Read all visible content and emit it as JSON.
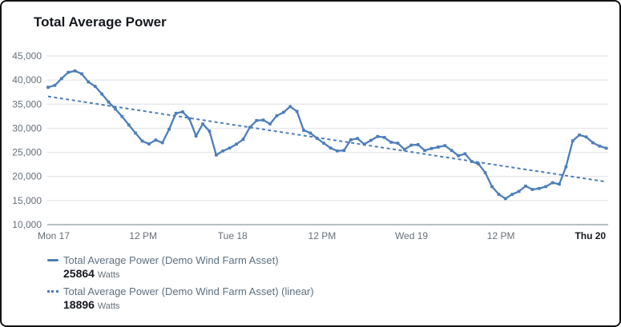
{
  "title": "Total Average Power",
  "chart_data": {
    "type": "line",
    "title": "Total Average Power",
    "xlabel": "",
    "ylabel": "",
    "ylim": [
      10000,
      45000
    ],
    "grid": true,
    "legend_position": "bottom-left",
    "ytick_values": [
      45000,
      40000,
      35000,
      30000,
      25000,
      20000,
      15000,
      10000
    ],
    "ytick_labels": [
      "45,000",
      "40,000",
      "35,000",
      "30,000",
      "25,000",
      "20,000",
      "15,000",
      "10,000"
    ],
    "xtick_labels": [
      "Mon 17",
      "12 PM",
      "Tue 18",
      "12 PM",
      "Wed 19",
      "12 PM",
      "Thu 20"
    ],
    "series": [
      {
        "name": "Total Average Power (Demo Wind Farm Asset)",
        "type": "line-with-markers",
        "color": "#4d7eb8",
        "current_value": 25864,
        "unit": "Watts",
        "values": [
          38500,
          38900,
          40300,
          41600,
          41900,
          41300,
          39600,
          38700,
          37100,
          35450,
          34000,
          32450,
          30700,
          29000,
          27350,
          26750,
          27550,
          27000,
          29800,
          33100,
          33400,
          32000,
          28400,
          30900,
          29400,
          24450,
          25300,
          25900,
          26700,
          27700,
          30200,
          31600,
          31700,
          30900,
          32600,
          33300,
          34500,
          33500,
          29600,
          29000,
          27900,
          26900,
          25900,
          25300,
          25400,
          27600,
          27900,
          26700,
          27500,
          28300,
          28100,
          27100,
          26900,
          25600,
          26500,
          26600,
          25400,
          25800,
          26100,
          26400,
          25400,
          24300,
          24700,
          23100,
          22600,
          20800,
          17900,
          16300,
          15400,
          16300,
          16900,
          18000,
          17300,
          17500,
          17900,
          18700,
          18400,
          22000,
          27400,
          28600,
          28200,
          27000,
          26300,
          25864
        ]
      },
      {
        "name": "Total Average Power (Demo Wind Farm Asset) (linear)",
        "type": "linear-trend-dashed",
        "color": "#4d7eb8",
        "current_value": 18896,
        "unit": "Watts",
        "values": [
          36600,
          18896
        ]
      }
    ]
  },
  "legend": [
    {
      "swatch": "solid-line",
      "label": "Total Average Power (Demo Wind Farm Asset)",
      "value": "25864",
      "unit": "Watts"
    },
    {
      "swatch": "dotted-line",
      "label": "Total Average Power (Demo Wind Farm Asset) (linear)",
      "value": "18896",
      "unit": "Watts"
    }
  ],
  "colors": {
    "accent": "#4d7eb8",
    "grid": "#e4e6e9",
    "axis": "#b8bfc3",
    "tick_text": "#687078",
    "bold_tick_text": "#16191f",
    "title_text": "#16191f",
    "legend_label_text": "#5b7083",
    "value_text": "#16191f"
  }
}
